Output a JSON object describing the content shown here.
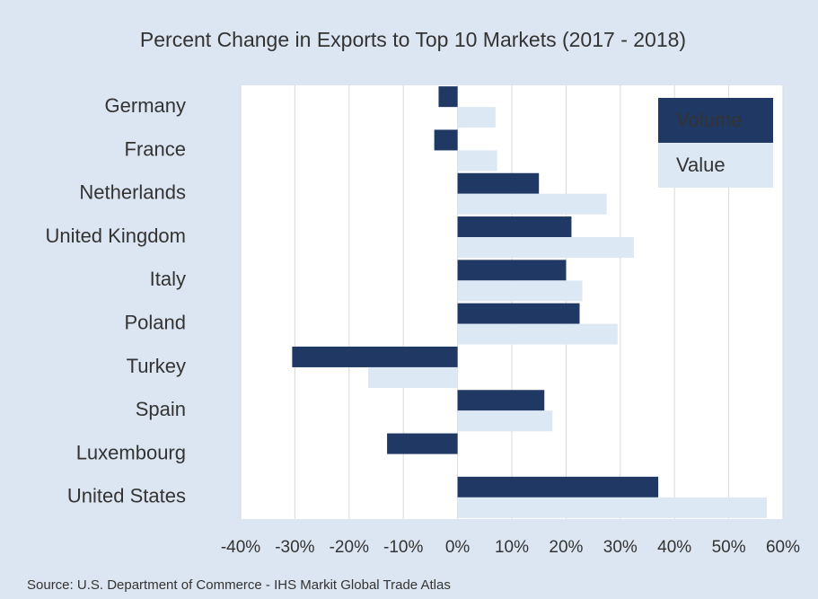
{
  "chart_data": {
    "type": "hbar",
    "title": "Percent Change in Exports to Top 10 Markets (2017 - 2018)",
    "source": "Source: U.S. Department of Commerce - IHS Markit Global Trade Atlas",
    "categories": [
      "Germany",
      "France",
      "Netherlands",
      "United Kingdom",
      "Italy",
      "Poland",
      "Turkey",
      "Spain",
      "Luxembourg",
      "United States"
    ],
    "series": [
      {
        "name": "Volume",
        "color": "#1f3864",
        "values": [
          -3.5,
          -4.3,
          15,
          21,
          20,
          22.5,
          -30.5,
          16,
          -13,
          37
        ]
      },
      {
        "name": "Value",
        "color": "#dde8f5",
        "values": [
          7,
          7.3,
          27.5,
          32.5,
          23,
          29.5,
          -16.5,
          17.5,
          null,
          57
        ]
      }
    ],
    "xlim": [
      -40,
      60
    ],
    "xticks": [
      {
        "value": -40,
        "label": "-40%"
      },
      {
        "value": -30,
        "label": "-30%"
      },
      {
        "value": -20,
        "label": "-20%"
      },
      {
        "value": -10,
        "label": "-10%"
      },
      {
        "value": 0,
        "label": "0%"
      },
      {
        "value": 10,
        "label": "10%"
      },
      {
        "value": 20,
        "label": "20%"
      },
      {
        "value": 30,
        "label": "30%"
      },
      {
        "value": 40,
        "label": "40%"
      },
      {
        "value": 50,
        "label": "50%"
      },
      {
        "value": 60,
        "label": "60%"
      }
    ],
    "grid": true,
    "legend": "upper right"
  }
}
